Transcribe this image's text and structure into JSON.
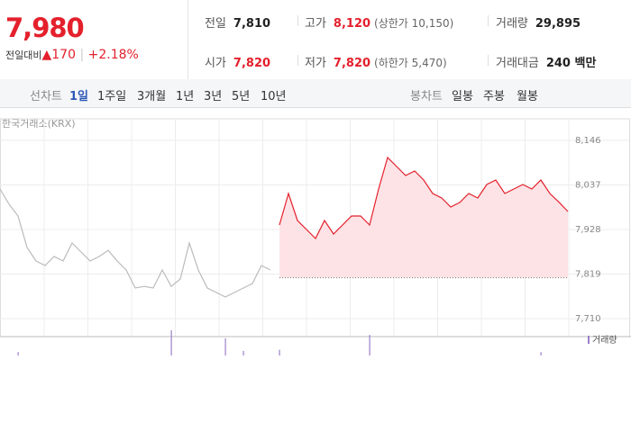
{
  "header": {
    "price": "7,980",
    "change_label": "전일대비",
    "change": "170",
    "rate": "+2.18%",
    "stats": [
      {
        "label": "전일",
        "value": "7,810"
      },
      {
        "label": "고가",
        "value": "8,120",
        "sub": "(상한가 10,150)"
      },
      {
        "label": "거래량",
        "value": "29,895"
      },
      {
        "label": "시가",
        "value": "7,820"
      },
      {
        "label": "저가",
        "value": "7,820",
        "sub": "(하한가 5,470)"
      },
      {
        "label": "거래대금",
        "value": "240 백만"
      }
    ]
  },
  "tabs": {
    "line_label": "선차트",
    "line_items": [
      "1일",
      "1주일",
      "3개월",
      "1년",
      "3년",
      "5년",
      "10년"
    ],
    "active": 0,
    "candle_label": "봉차트",
    "candle_items": [
      "일봉",
      "주봉",
      "월봉"
    ]
  },
  "chart_data": {
    "type": "line",
    "subtitle": "한국거래소(KRX)",
    "categories": [
      null,
      null,
      null,
      null,
      null,
      null,
      null,
      null,
      null,
      null,
      null,
      null,
      null,
      null,
      null,
      null,
      null,
      null,
      null,
      null,
      null,
      null,
      null,
      null,
      null,
      null,
      null,
      null,
      null,
      null,
      null,
      null,
      null,
      null,
      null,
      null,
      null,
      null,
      null,
      null,
      null,
      null,
      null,
      null,
      null,
      null,
      null,
      null,
      null,
      null,
      null,
      null,
      null,
      null,
      null,
      null,
      null,
      null,
      null,
      null,
      null,
      null,
      null,
      null
    ],
    "series": [
      {
        "color": "#bbbbbb",
        "values": [
          8027,
          7990,
          7961,
          7884,
          7851,
          7840,
          7862,
          7851,
          7895,
          7873,
          7851,
          7862,
          7877,
          7851,
          7829,
          7785,
          7789,
          7785,
          7829,
          7789,
          7807,
          7895,
          7829,
          7785,
          7774,
          7763,
          7774,
          7785,
          7796,
          7840,
          7829,
          null,
          null,
          null,
          null,
          null,
          null,
          null,
          null,
          null,
          null,
          null,
          null,
          null,
          null,
          null,
          null,
          null,
          null,
          null,
          null,
          null,
          null,
          null,
          null,
          null,
          null,
          null,
          null,
          null,
          null,
          null,
          null,
          null
        ]
      },
      {
        "color": "#e4202c",
        "values": [
          null,
          null,
          null,
          null,
          null,
          null,
          null,
          null,
          null,
          null,
          null,
          null,
          null,
          null,
          null,
          null,
          null,
          null,
          null,
          null,
          null,
          null,
          null,
          null,
          null,
          null,
          null,
          null,
          null,
          null,
          null,
          7939,
          8016,
          7950,
          7928,
          7906,
          7950,
          7917,
          7939,
          7961,
          7961,
          7939,
          8027,
          8104,
          8082,
          8060,
          8071,
          8049,
          8016,
          8005,
          7983,
          7994,
          8016,
          8005,
          8038,
          8049,
          8016,
          8027,
          8038,
          8027,
          8049,
          8016,
          7995,
          7972
        ]
      }
    ],
    "reference_line": 7810,
    "area_color": "#fde3e5",
    "volume": {
      "name": "거래량",
      "color": "#9b7fc9",
      "values": [
        0,
        0,
        3,
        0,
        0,
        0,
        0,
        0,
        0,
        0,
        0,
        0,
        0,
        0,
        0,
        0,
        0,
        0,
        0,
        22,
        0,
        0,
        0,
        0,
        0,
        15,
        0,
        4,
        0,
        0,
        0,
        5,
        0,
        0,
        0,
        0,
        0,
        0,
        0,
        0,
        0,
        18,
        0,
        0,
        0,
        0,
        0,
        0,
        0,
        0,
        0,
        0,
        0,
        0,
        0,
        0,
        0,
        0,
        0,
        0,
        3,
        0,
        0,
        0
      ]
    },
    "ylim": [
      7686,
      8181
    ],
    "yticks": [
      {
        "value": 7710,
        "label": "7,710"
      },
      {
        "value": 7819,
        "label": "7,819"
      },
      {
        "value": 7928,
        "label": "7,928"
      },
      {
        "value": 8037,
        "label": "8,037"
      },
      {
        "value": 8146,
        "label": "8,146"
      }
    ],
    "grid": true
  }
}
